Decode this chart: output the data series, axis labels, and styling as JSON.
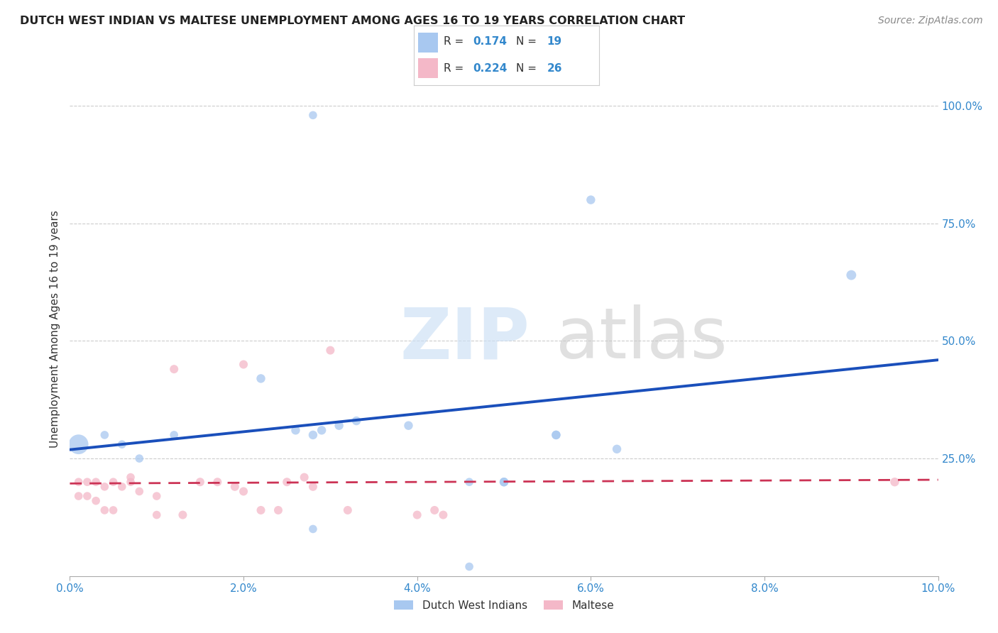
{
  "title": "DUTCH WEST INDIAN VS MALTESE UNEMPLOYMENT AMONG AGES 16 TO 19 YEARS CORRELATION CHART",
  "source": "Source: ZipAtlas.com",
  "ylabel": "Unemployment Among Ages 16 to 19 years",
  "xlim": [
    0.0,
    0.1
  ],
  "ylim": [
    0.0,
    1.05
  ],
  "xticks": [
    0.0,
    0.02,
    0.04,
    0.06,
    0.08,
    0.1
  ],
  "yticks": [
    0.25,
    0.5,
    0.75,
    1.0
  ],
  "yticklabels_right": [
    "25.0%",
    "50.0%",
    "75.0%",
    "100.0%"
  ],
  "blue_fill": "#a8c8f0",
  "pink_fill": "#f4b8c8",
  "blue_line": "#1a4fbb",
  "pink_line": "#cc3355",
  "R_blue": "0.174",
  "N_blue": "19",
  "R_pink": "0.224",
  "N_pink": "26",
  "blue_points_x": [
    0.001,
    0.004,
    0.006,
    0.008,
    0.012,
    0.022,
    0.026,
    0.028,
    0.029,
    0.031,
    0.033,
    0.039,
    0.028,
    0.046,
    0.05,
    0.056,
    0.05,
    0.056,
    0.063,
    0.09,
    0.046,
    0.028,
    0.06
  ],
  "blue_points_y": [
    0.28,
    0.3,
    0.28,
    0.25,
    0.3,
    0.42,
    0.31,
    0.3,
    0.31,
    0.32,
    0.33,
    0.32,
    0.1,
    0.02,
    0.2,
    0.3,
    0.2,
    0.3,
    0.27,
    0.64,
    0.2,
    0.98,
    0.8
  ],
  "pink_points_x": [
    0.001,
    0.001,
    0.002,
    0.002,
    0.003,
    0.003,
    0.004,
    0.004,
    0.005,
    0.005,
    0.006,
    0.007,
    0.007,
    0.008,
    0.01,
    0.01,
    0.013,
    0.015,
    0.017,
    0.019,
    0.02,
    0.022,
    0.024,
    0.025,
    0.027,
    0.028,
    0.03,
    0.032,
    0.04,
    0.042,
    0.02,
    0.012,
    0.043,
    0.095
  ],
  "pink_points_y": [
    0.17,
    0.2,
    0.17,
    0.2,
    0.2,
    0.16,
    0.19,
    0.14,
    0.14,
    0.2,
    0.19,
    0.21,
    0.2,
    0.18,
    0.17,
    0.13,
    0.13,
    0.2,
    0.2,
    0.19,
    0.18,
    0.14,
    0.14,
    0.2,
    0.21,
    0.19,
    0.48,
    0.14,
    0.13,
    0.14,
    0.45,
    0.44,
    0.13,
    0.2
  ],
  "blue_marker_sizes": [
    400,
    70,
    70,
    70,
    70,
    80,
    80,
    80,
    80,
    80,
    80,
    80,
    70,
    70,
    80,
    80,
    80,
    80,
    80,
    100,
    70,
    70,
    80
  ],
  "pink_marker_sizes": [
    70,
    70,
    70,
    70,
    70,
    70,
    70,
    70,
    70,
    70,
    70,
    70,
    70,
    70,
    70,
    70,
    75,
    75,
    75,
    75,
    75,
    75,
    75,
    75,
    75,
    75,
    75,
    75,
    75,
    75,
    75,
    75,
    75,
    80
  ]
}
